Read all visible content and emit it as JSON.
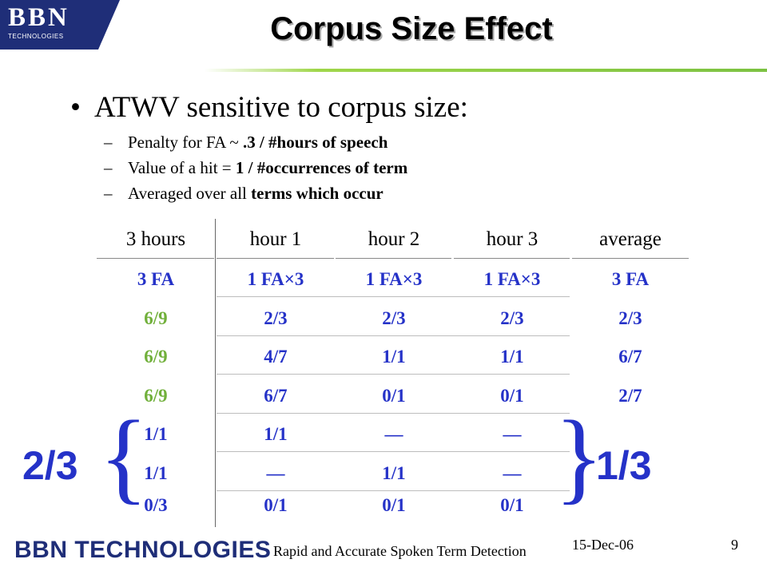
{
  "logo": {
    "mark": "BBN",
    "sub": "TECHNOLOGIES"
  },
  "title": "Corpus Size Effect",
  "bullet": "ATWV sensitive to corpus size:",
  "subs": [
    {
      "pre": "Penalty for FA  ~  ",
      "bold": ".3 / #hours of speech"
    },
    {
      "pre": "Value of a hit  =  ",
      "bold": "1 / #occurrences of term"
    },
    {
      "pre": "Averaged over all ",
      "bold": "terms which occur"
    }
  ],
  "table": {
    "headers": [
      "3 hours",
      "hour 1",
      "hour 2",
      "hour 3",
      "average"
    ],
    "rows": [
      [
        "3 FA",
        "1 FA×3",
        "1 FA×3",
        "1 FA×3",
        "3 FA"
      ],
      [
        "6/9",
        "2/3",
        "2/3",
        "2/3",
        "2/3"
      ],
      [
        "6/9",
        "4/7",
        "1/1",
        "1/1",
        "6/7"
      ],
      [
        "6/9",
        "6/7",
        "0/1",
        "0/1",
        "2/7"
      ],
      [
        "1/1",
        "1/1",
        "—",
        "—",
        ""
      ],
      [
        "1/1",
        "—",
        "1/1",
        "—",
        ""
      ],
      [
        "0/3",
        "0/1",
        "0/1",
        "0/1",
        ""
      ]
    ]
  },
  "left_result": "2/3",
  "right_result": "1/3",
  "footer": {
    "brand": "BBN TECHNOLOGIES",
    "center": "Rapid and Accurate Spoken Term Detection",
    "date": "15-Dec-06",
    "page": "9"
  }
}
